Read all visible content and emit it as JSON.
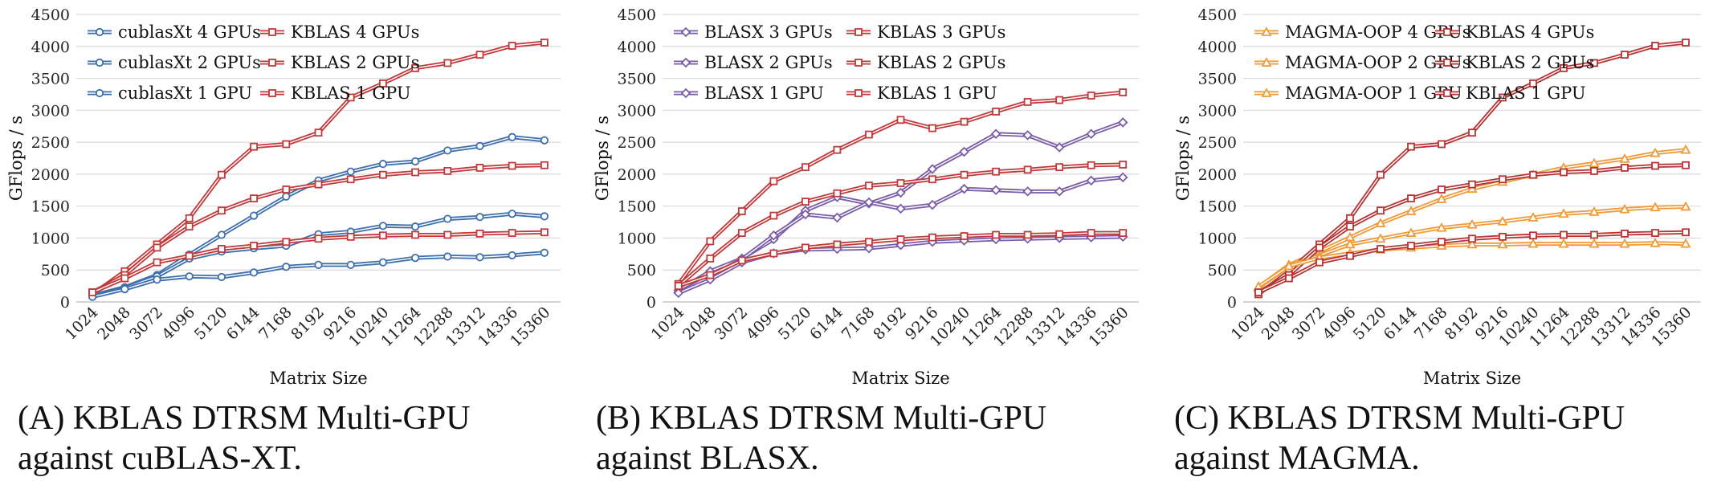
{
  "x_categories": [
    "1024",
    "2048",
    "3072",
    "4096",
    "5120",
    "6144",
    "7168",
    "8192",
    "9216",
    "10240",
    "11264",
    "12288",
    "13312",
    "14336",
    "15360"
  ],
  "y_ticks": [
    "0",
    "500",
    "1000",
    "1500",
    "2000",
    "2500",
    "3000",
    "3500",
    "4000",
    "4500"
  ],
  "colors": {
    "blue": "#3d6fad",
    "red": "#c0393b",
    "purple": "#7b5ca8",
    "orange": "#ee9a38",
    "dark_red": "#b43434"
  },
  "chart_data": [
    {
      "type": "line",
      "xlabel": "Matrix Size",
      "ylabel": "GFlops / s",
      "ylim": [
        0,
        4500
      ],
      "grid": true,
      "legend": "top-left",
      "caption": [
        "(A) KBLAS DTRSM Multi-GPU",
        "against cuBLAS-XT."
      ],
      "series": [
        {
          "name": "cublasXt 4 GPUs",
          "color": "#3d6fad",
          "marker": "circle",
          "values": [
            100,
            230,
            420,
            740,
            1050,
            1350,
            1650,
            1900,
            2040,
            2160,
            2200,
            2370,
            2440,
            2580,
            2530
          ]
        },
        {
          "name": "KBLAS 4 GPUs",
          "color": "#c0393b",
          "marker": "square",
          "values": [
            120,
            480,
            900,
            1310,
            1990,
            2430,
            2470,
            2650,
            3200,
            3420,
            3660,
            3740,
            3870,
            4010,
            4060
          ]
        },
        {
          "name": "cublasXt 2 GPUs",
          "color": "#3d6fad",
          "marker": "circle",
          "values": [
            100,
            220,
            400,
            680,
            790,
            840,
            880,
            1060,
            1100,
            1190,
            1180,
            1300,
            1330,
            1380,
            1340
          ]
        },
        {
          "name": "KBLAS 2 GPUs",
          "color": "#c0393b",
          "marker": "square",
          "values": [
            150,
            420,
            850,
            1180,
            1430,
            1620,
            1760,
            1840,
            1920,
            1990,
            2030,
            2050,
            2100,
            2130,
            2140
          ]
        },
        {
          "name": "cublasXt 1 GPU",
          "color": "#3d6fad",
          "marker": "circle",
          "values": [
            80,
            200,
            350,
            400,
            390,
            460,
            550,
            580,
            580,
            620,
            690,
            710,
            700,
            730,
            770
          ]
        },
        {
          "name": "KBLAS 1 GPU",
          "color": "#c0393b",
          "marker": "square",
          "values": [
            150,
            370,
            620,
            720,
            830,
            880,
            940,
            990,
            1020,
            1040,
            1050,
            1050,
            1070,
            1080,
            1090
          ]
        }
      ]
    },
    {
      "type": "line",
      "xlabel": "Matrix Size",
      "ylabel": "GFlops / s",
      "ylim": [
        0,
        4500
      ],
      "grid": true,
      "legend": "top-left",
      "caption": [
        "(B) KBLAS DTRSM Multi-GPU",
        "against BLASX."
      ],
      "series": [
        {
          "name": "BLASX 3 GPUs",
          "color": "#7b5ca8",
          "marker": "diamond",
          "values": [
            180,
            480,
            680,
            980,
            1430,
            1640,
            1540,
            1710,
            2080,
            2350,
            2630,
            2610,
            2420,
            2630,
            2810
          ]
        },
        {
          "name": "KBLAS 3 GPUs",
          "color": "#c0393b",
          "marker": "square",
          "values": [
            280,
            950,
            1420,
            1890,
            2110,
            2380,
            2620,
            2850,
            2720,
            2820,
            2980,
            3130,
            3160,
            3230,
            3280
          ]
        },
        {
          "name": "BLASX 2 GPUs",
          "color": "#7b5ca8",
          "marker": "diamond",
          "values": [
            150,
            400,
            670,
            1040,
            1370,
            1320,
            1560,
            1460,
            1520,
            1770,
            1750,
            1730,
            1730,
            1900,
            1950
          ]
        },
        {
          "name": "KBLAS 2 GPUs",
          "color": "#c0393b",
          "marker": "square",
          "values": [
            250,
            680,
            1080,
            1350,
            1570,
            1700,
            1820,
            1860,
            1920,
            1990,
            2040,
            2070,
            2110,
            2140,
            2150
          ]
        },
        {
          "name": "BLASX 1 GPU",
          "color": "#7b5ca8",
          "marker": "diamond",
          "values": [
            140,
            350,
            620,
            760,
            820,
            830,
            840,
            890,
            940,
            960,
            980,
            990,
            1000,
            1010,
            1020
          ]
        },
        {
          "name": "KBLAS 1 GPU",
          "color": "#c0393b",
          "marker": "square",
          "values": [
            250,
            420,
            650,
            760,
            850,
            900,
            940,
            980,
            1010,
            1030,
            1050,
            1050,
            1060,
            1080,
            1080
          ]
        }
      ]
    },
    {
      "type": "line",
      "xlabel": "Matrix Size",
      "ylabel": "GFlops / s",
      "ylim": [
        0,
        4500
      ],
      "grid": true,
      "legend": "top-left",
      "caption": [
        "(C) KBLAS DTRSM Multi-GPU",
        "against MAGMA."
      ],
      "series": [
        {
          "name": "MAGMA-OOP 4 GPUs",
          "color": "#ee9a38",
          "marker": "triangle",
          "values": [
            230,
            580,
            790,
            1010,
            1230,
            1420,
            1610,
            1770,
            1880,
            1990,
            2100,
            2170,
            2240,
            2330,
            2380
          ]
        },
        {
          "name": "KBLAS 4 GPUs",
          "color": "#b43434",
          "marker": "square",
          "values": [
            120,
            480,
            900,
            1310,
            1990,
            2430,
            2470,
            2650,
            3200,
            3420,
            3660,
            3740,
            3870,
            4010,
            4060
          ]
        },
        {
          "name": "MAGMA-OOP 2 GPUs",
          "color": "#ee9a38",
          "marker": "triangle",
          "values": [
            220,
            560,
            730,
            900,
            990,
            1080,
            1160,
            1210,
            1260,
            1320,
            1380,
            1410,
            1450,
            1480,
            1490
          ]
        },
        {
          "name": "KBLAS 2 GPUs",
          "color": "#b43434",
          "marker": "square",
          "values": [
            150,
            420,
            850,
            1180,
            1430,
            1620,
            1760,
            1840,
            1920,
            1990,
            2030,
            2050,
            2100,
            2130,
            2140
          ]
        },
        {
          "name": "MAGMA-OOP 1 GPU",
          "color": "#ee9a38",
          "marker": "triangle",
          "values": [
            240,
            560,
            690,
            760,
            820,
            850,
            880,
            900,
            900,
            910,
            910,
            910,
            910,
            920,
            910
          ]
        },
        {
          "name": "KBLAS 1 GPU",
          "color": "#b43434",
          "marker": "square",
          "values": [
            150,
            370,
            620,
            720,
            830,
            880,
            940,
            990,
            1020,
            1040,
            1050,
            1050,
            1070,
            1080,
            1090
          ]
        }
      ]
    }
  ]
}
